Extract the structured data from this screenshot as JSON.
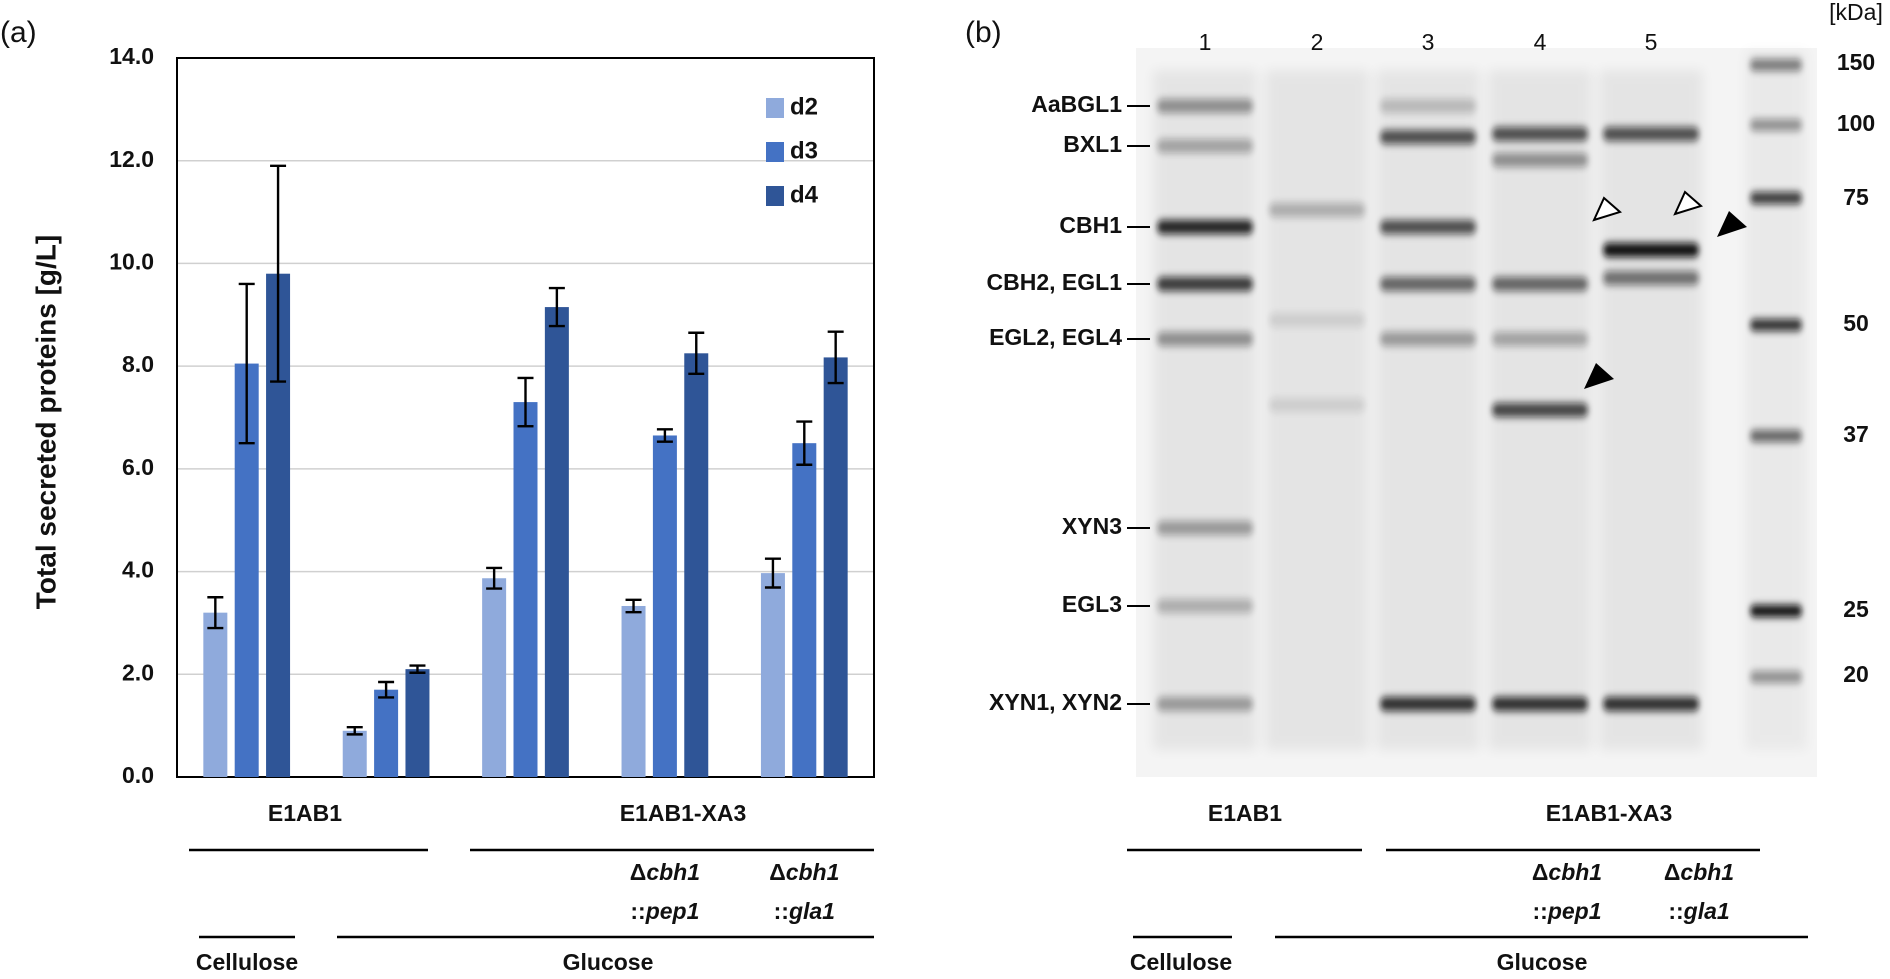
{
  "chart_data": {
    "type": "bar",
    "panel_label": "(a)",
    "y_label": "Total secreted proteins [g/L]",
    "categories": [
      null,
      null,
      null,
      null,
      null
    ],
    "series": [
      {
        "name": "d2",
        "color": "#8faadc",
        "values": [
          3.2,
          0.9,
          3.87,
          3.33,
          3.97
        ],
        "errors": [
          0.3,
          0.07,
          0.2,
          0.12,
          0.28
        ]
      },
      {
        "name": "d3",
        "color": "#4472c4",
        "values": [
          8.05,
          1.7,
          7.3,
          6.65,
          6.5
        ],
        "errors": [
          1.55,
          0.15,
          0.47,
          0.12,
          0.42
        ]
      },
      {
        "name": "d4",
        "color": "#2f5597",
        "values": [
          9.8,
          2.1,
          9.15,
          8.25,
          8.17
        ],
        "errors": [
          2.1,
          0.07,
          0.37,
          0.4,
          0.5
        ]
      }
    ],
    "ylim": [
      0,
      14
    ],
    "yticks": [
      {
        "value": 0,
        "label": "0.0"
      },
      {
        "value": 2,
        "label": "2.0"
      },
      {
        "value": 4,
        "label": "4.0"
      },
      {
        "value": 6,
        "label": "6.0"
      },
      {
        "value": 8,
        "label": "8.0"
      },
      {
        "value": 10,
        "label": "10.0"
      },
      {
        "value": 12,
        "label": "12.0"
      },
      {
        "value": 14,
        "label": "14.0"
      }
    ],
    "grid": true,
    "legend": "upper right",
    "strains": [
      "E1AB1",
      "E1AB1-XA3"
    ],
    "mutants": [
      {
        "line1": [
          "Δ",
          "cbh1"
        ],
        "line2": [
          "::",
          "pep1"
        ]
      },
      {
        "line1": [
          "Δ",
          "cbh1"
        ],
        "line2": [
          "::",
          "gla1"
        ]
      }
    ],
    "carbon_sources": [
      "Cellulose",
      "Glucose"
    ]
  },
  "gel": {
    "panel_label": "(b)",
    "lanes": [
      "1",
      "2",
      "3",
      "4",
      "5"
    ],
    "proteins": [
      "AaBGL1",
      "BXL1",
      "CBH1",
      "CBH2, EGL1",
      "EGL2, EGL4",
      "XYN3",
      "EGL3",
      "XYN1, XYN2"
    ],
    "marker_unit": "[kDa]",
    "markers": [
      "150",
      "100",
      "75",
      "50",
      "37",
      "25",
      "20"
    ],
    "strains": [
      "E1AB1",
      "E1AB1-XA3"
    ],
    "mutants": [
      {
        "line1": [
          "Δ",
          "cbh1"
        ],
        "line2": [
          "::",
          "pep1"
        ]
      },
      {
        "line1": [
          "Δ",
          "cbh1"
        ],
        "line2": [
          "::",
          "gla1"
        ]
      }
    ],
    "carbon_sources": [
      "Cellulose",
      "Glucose"
    ]
  }
}
